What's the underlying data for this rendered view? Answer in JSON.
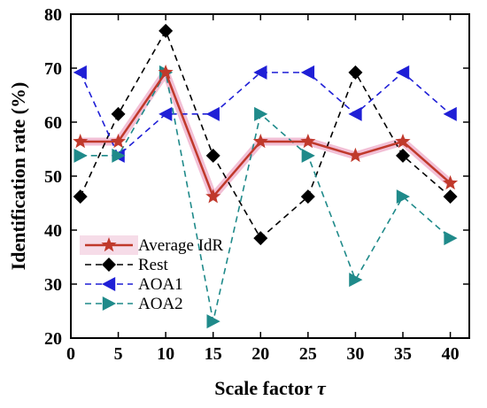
{
  "chart_data": {
    "type": "line",
    "xlabel": "Scale factor τ",
    "ylabel": "Identification rate  (%)",
    "xlim": [
      0,
      42
    ],
    "ylim": [
      20,
      80
    ],
    "xticks": [
      0,
      5,
      10,
      15,
      20,
      25,
      30,
      35,
      40
    ],
    "yticks": [
      20,
      30,
      40,
      50,
      60,
      70,
      80
    ],
    "x": [
      1,
      5,
      10,
      15,
      20,
      25,
      30,
      35,
      40
    ],
    "grid": false,
    "legend_position": "bottom-left",
    "series": [
      {
        "name": "Average IdR",
        "values": [
          56.4,
          56.4,
          69.2,
          46.2,
          56.4,
          56.4,
          53.8,
          56.4,
          48.7
        ],
        "color": "#c0392b",
        "marker": "star",
        "line": "solid"
      },
      {
        "name": "Rest",
        "values": [
          46.2,
          61.5,
          76.9,
          53.8,
          38.5,
          46.2,
          69.2,
          53.8,
          46.2
        ],
        "color": "#000000",
        "marker": "diamond",
        "line": "dashed"
      },
      {
        "name": "AOA1",
        "values": [
          69.2,
          53.8,
          61.5,
          61.5,
          69.2,
          69.2,
          61.5,
          69.2,
          61.5
        ],
        "color": "#1f1fd6",
        "marker": "triangle-left",
        "line": "dashed"
      },
      {
        "name": "AOA2",
        "values": [
          53.8,
          53.8,
          69.2,
          23.1,
          61.5,
          53.8,
          30.8,
          46.2,
          38.5
        ],
        "color": "#1f8a8a",
        "marker": "triangle-right",
        "line": "dashed"
      }
    ]
  }
}
